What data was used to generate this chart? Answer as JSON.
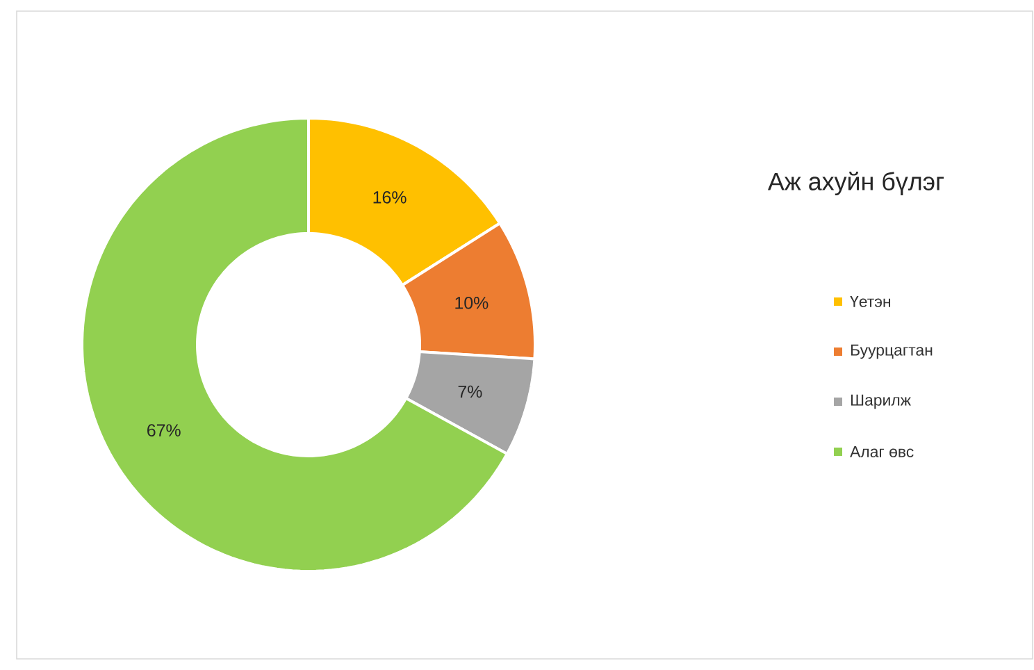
{
  "chart_data": {
    "type": "donut",
    "title": "Аж ахуйн бүлэг",
    "categories": [
      "Үетэн",
      "Буурцагтан",
      "Шарилж",
      "Алаг өвс"
    ],
    "values": [
      16,
      10,
      7,
      67
    ],
    "colors": [
      "#ffc000",
      "#ed7d31",
      "#a5a5a5",
      "#92d050"
    ],
    "value_labels": [
      "16%",
      "10%",
      "7%",
      "67%"
    ],
    "legend": "right"
  }
}
